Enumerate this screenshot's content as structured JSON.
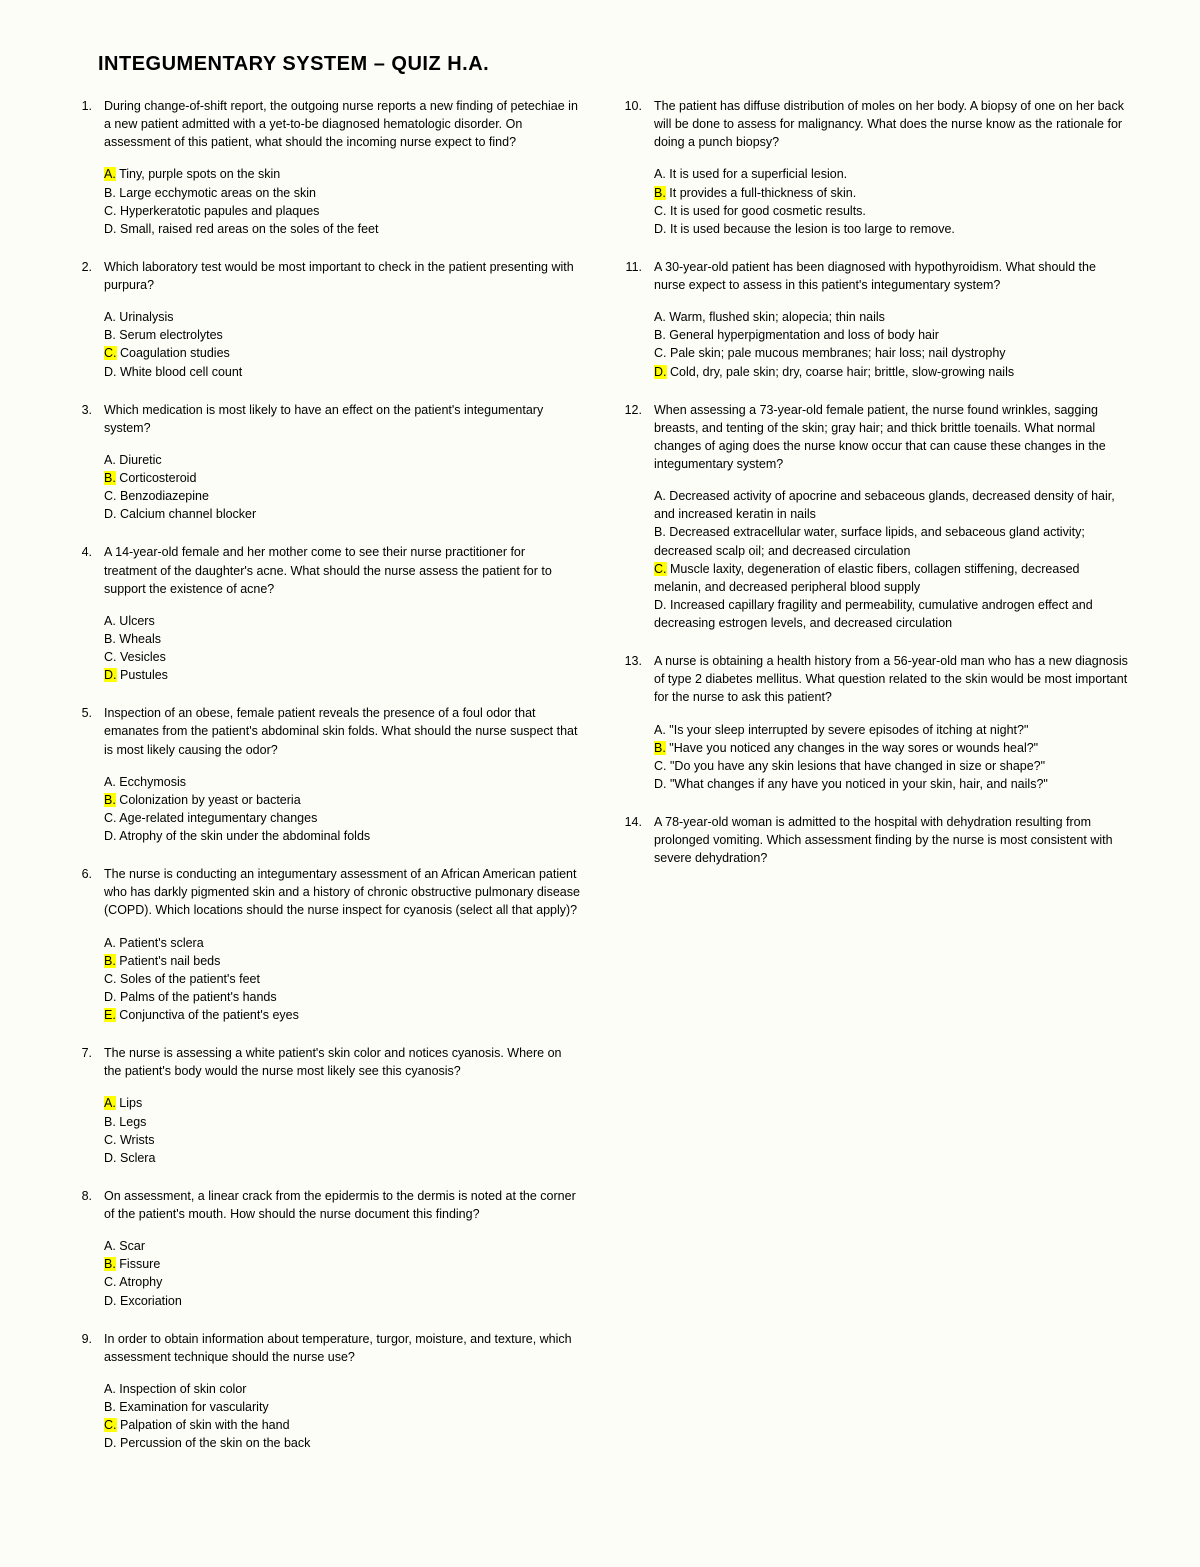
{
  "title": "INTEGUMENTARY SYSTEM – QUIZ H.A.",
  "highlight_color": "#ffff00",
  "questions": [
    {
      "n": "1.",
      "text": "During change-of-shift report, the outgoing nurse reports a new finding of petechiae in a new patient admitted with a yet-to-be diagnosed hematologic disorder. On assessment of this patient, what should the incoming nurse expect to find?",
      "opts": [
        {
          "l": "A.",
          "t": "Tiny, purple spots on the skin",
          "hl": true
        },
        {
          "l": "B.",
          "t": "Large ecchymotic areas on the skin"
        },
        {
          "l": "C.",
          "t": "Hyperkeratotic papules and plaques"
        },
        {
          "l": "D.",
          "t": "Small, raised red areas on the soles of the feet"
        }
      ]
    },
    {
      "n": "2.",
      "text": "Which laboratory test would be most important to check in the patient presenting with purpura?",
      "opts": [
        {
          "l": "A.",
          "t": "Urinalysis"
        },
        {
          "l": "B.",
          "t": "Serum electrolytes"
        },
        {
          "l": "C.",
          "t": "Coagulation studies",
          "hl": true
        },
        {
          "l": "D.",
          "t": "White blood cell count"
        }
      ]
    },
    {
      "n": "3.",
      "text": "Which medication is most likely to have an effect on the patient's integumentary system?",
      "opts": [
        {
          "l": "A.",
          "t": "Diuretic"
        },
        {
          "l": "B.",
          "t": "Corticosteroid",
          "hl": true
        },
        {
          "l": "C.",
          "t": "Benzodiazepine"
        },
        {
          "l": "D.",
          "t": "Calcium channel blocker"
        }
      ]
    },
    {
      "n": "4.",
      "text": "A 14-year-old female and her mother come to see their nurse practitioner for treatment of the daughter's acne. What should the nurse assess the patient for to support the existence of acne?",
      "opts": [
        {
          "l": "A.",
          "t": "Ulcers"
        },
        {
          "l": "B.",
          "t": "Wheals"
        },
        {
          "l": "C.",
          "t": "Vesicles"
        },
        {
          "l": "D.",
          "t": "Pustules",
          "hl": true
        }
      ]
    },
    {
      "n": "5.",
      "text": "Inspection of an obese, female patient reveals the presence of a foul odor that emanates from the patient's abdominal skin folds. What should the nurse suspect that is most likely causing the odor?",
      "opts": [
        {
          "l": "A.",
          "t": "Ecchymosis"
        },
        {
          "l": "B.",
          "t": "Colonization by yeast or bacteria",
          "hl": true
        },
        {
          "l": "C.",
          "t": "Age-related integumentary changes"
        },
        {
          "l": "D.",
          "t": "Atrophy of the skin under the abdominal folds"
        }
      ]
    },
    {
      "n": "6.",
      "text": "The nurse is conducting an integumentary assessment of an African American patient who has darkly pigmented skin and a history of chronic obstructive pulmonary disease (COPD). Which locations should the nurse inspect for cyanosis (select all that apply)?",
      "opts": [
        {
          "l": "A.",
          "t": "Patient's sclera"
        },
        {
          "l": "B.",
          "t": "Patient's nail beds",
          "hl": true
        },
        {
          "l": "C.",
          "t": "Soles of the patient's feet"
        },
        {
          "l": "D.",
          "t": "Palms of the patient's hands"
        },
        {
          "l": "E.",
          "t": "Conjunctiva of the patient's eyes",
          "hl": true
        }
      ]
    },
    {
      "n": "7.",
      "text": "The nurse is assessing a white patient's skin color and notices cyanosis. Where on the patient's body would the nurse most likely see this cyanosis?",
      "opts": [
        {
          "l": "A.",
          "t": "Lips",
          "hl": true
        },
        {
          "l": "B.",
          "t": "Legs"
        },
        {
          "l": "C.",
          "t": "Wrists"
        },
        {
          "l": "D.",
          "t": "Sclera"
        }
      ]
    },
    {
      "n": "8.",
      "text": "On assessment, a linear crack from the epidermis to the dermis is noted at the corner of the patient's mouth. How should the nurse document this finding?",
      "opts": [
        {
          "l": "A.",
          "t": "Scar"
        },
        {
          "l": "B.",
          "t": "Fissure",
          "hl": true
        },
        {
          "l": "C.",
          "t": "Atrophy"
        },
        {
          "l": "D.",
          "t": "Excoriation"
        }
      ],
      "break": true
    },
    {
      "n": "9.",
      "text": "In order to obtain information about temperature, turgor, moisture, and texture, which assessment technique should the nurse use?",
      "opts": [
        {
          "l": "A.",
          "t": "Inspection of skin color"
        },
        {
          "l": "B.",
          "t": "Examination for vascularity"
        },
        {
          "l": "C.",
          "t": "Palpation of skin with the hand",
          "hl": true
        },
        {
          "l": "D.",
          "t": "Percussion of the skin on the back"
        }
      ]
    },
    {
      "n": "10.",
      "text": "The patient has diffuse distribution of moles on her body. A biopsy of one on her back will be done to assess for malignancy. What does the nurse know as the rationale for doing a punch biopsy?",
      "opts": [
        {
          "l": "A.",
          "t": "It is used for a superficial lesion."
        },
        {
          "l": "B.",
          "t": "It provides a full-thickness of skin.",
          "hl": true
        },
        {
          "l": "C.",
          "t": "It is used for good cosmetic results."
        },
        {
          "l": "D.",
          "t": "It is used because the lesion is too large to remove."
        }
      ]
    },
    {
      "n": "11.",
      "text": "A 30-year-old patient has been diagnosed with hypothyroidism. What should the nurse expect to assess in this patient's integumentary system?",
      "opts": [
        {
          "l": "A.",
          "t": "Warm, flushed skin; alopecia; thin nails"
        },
        {
          "l": "B.",
          "t": "General hyperpigmentation and loss of body hair"
        },
        {
          "l": "C.",
          "t": "Pale skin; pale mucous membranes; hair loss; nail dystrophy"
        },
        {
          "l": "D.",
          "t": "Cold, dry, pale skin; dry, coarse hair; brittle, slow-growing nails",
          "hl": true
        }
      ]
    },
    {
      "n": "12.",
      "text": "When assessing a 73-year-old female patient, the nurse found wrinkles, sagging breasts, and tenting of the skin; gray hair; and thick brittle toenails. What normal changes of aging does the nurse know occur that can cause these changes in the integumentary system?",
      "opts": [
        {
          "l": "A.",
          "t": "Decreased activity of apocrine and sebaceous glands, decreased density of hair, and increased keratin in nails"
        },
        {
          "l": "B.",
          "t": "Decreased extracellular water, surface lipids, and sebaceous gland activity; decreased scalp oil; and decreased circulation"
        },
        {
          "l": "C.",
          "t": "Muscle laxity, degeneration of elastic fibers, collagen stiffening, decreased melanin, and decreased peripheral blood supply",
          "hl": true
        },
        {
          "l": "D.",
          "t": "Increased capillary fragility and permeability, cumulative androgen effect and decreasing estrogen levels, and decreased circulation"
        }
      ]
    },
    {
      "n": "13.",
      "text": "A nurse is obtaining a health history from a 56-year-old man who has a new diagnosis of type 2 diabetes mellitus. What question related to the skin would be most important for the nurse to ask this patient?",
      "opts": [
        {
          "l": "A.",
          "t": "\"Is your sleep interrupted by severe episodes of itching at night?\""
        },
        {
          "l": "B.",
          "t": "\"Have you noticed any changes in the way sores or wounds heal?\"",
          "hl": true
        },
        {
          "l": "C.",
          "t": "\"Do you have any skin lesions that have changed in size or shape?\""
        },
        {
          "l": "D.",
          "t": "\"What changes if any have you noticed in your skin, hair, and nails?\""
        }
      ]
    },
    {
      "n": "14.",
      "text": "A 78-year-old woman is admitted to the hospital with dehydration resulting from prolonged vomiting. Which assessment finding by the nurse is most consistent with severe dehydration?",
      "opts": []
    }
  ]
}
